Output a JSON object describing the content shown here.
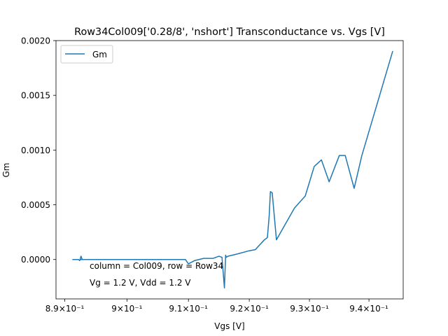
{
  "chart_data": {
    "type": "line",
    "title": "Row34Col009['0.28/8', 'nshort'] Transconductance vs. Vgs [V]",
    "xlabel": "Vgs [V]",
    "ylabel": "Gm",
    "x_scale": "log",
    "xlim": [
      0.8886,
      0.9458
    ],
    "ylim": [
      -0.00036,
      0.002
    ],
    "x_ticks": [
      {
        "value": 0.89,
        "label": "8.9×10⁻¹"
      },
      {
        "value": 0.9,
        "label": "9×10⁻¹"
      },
      {
        "value": 0.91,
        "label": "9.1×10⁻¹"
      },
      {
        "value": 0.92,
        "label": "9.2×10⁻¹"
      },
      {
        "value": 0.93,
        "label": "9.3×10⁻¹"
      },
      {
        "value": 0.94,
        "label": "9.4×10⁻¹"
      }
    ],
    "y_ticks": [
      {
        "value": 0.0,
        "label": "0.0000"
      },
      {
        "value": 0.0005,
        "label": "0.0005"
      },
      {
        "value": 0.001,
        "label": "0.0010"
      },
      {
        "value": 0.0015,
        "label": "0.0015"
      },
      {
        "value": 0.002,
        "label": "0.0020"
      }
    ],
    "grid": false,
    "legend_position": "top-left",
    "series": [
      {
        "name": "Gm",
        "color": "#1f77b4",
        "x": [
          0.8913,
          0.8917,
          0.8922,
          0.8924,
          0.8926,
          0.8928,
          0.8925,
          0.893,
          0.895,
          0.898,
          0.9,
          0.905,
          0.9095,
          0.91,
          0.911,
          0.9125,
          0.914,
          0.915,
          0.9155,
          0.9159,
          0.9161,
          0.9162,
          0.9165,
          0.918,
          0.92,
          0.921,
          0.9225,
          0.923,
          0.9233,
          0.9235,
          0.9238,
          0.9245,
          0.9275,
          0.9293,
          0.9308,
          0.932,
          0.9333,
          0.935,
          0.936,
          0.9375,
          0.9388,
          0.944
        ],
        "y": [
          0.0,
          0.0,
          0.0,
          -1e-05,
          3e-05,
          0.0,
          0.0,
          0.0,
          0.0,
          0.0,
          0.0,
          0.0,
          0.0,
          -4e-05,
          -1e-05,
          1e-05,
          1e-05,
          3e-05,
          2e-05,
          -0.00026,
          4e-05,
          2e-05,
          3e-05,
          5e-05,
          8e-05,
          9e-05,
          0.00018,
          0.0002,
          0.0004,
          0.00062,
          0.00061,
          0.00018,
          0.00047,
          0.00058,
          0.00085,
          0.00091,
          0.00071,
          0.00095,
          0.00095,
          0.00065,
          0.00095,
          0.0019
        ]
      }
    ],
    "annotations": [
      "column = Col009, row = Row34",
      "Vg = 1.2 V, Vdd = 1.2 V"
    ]
  }
}
